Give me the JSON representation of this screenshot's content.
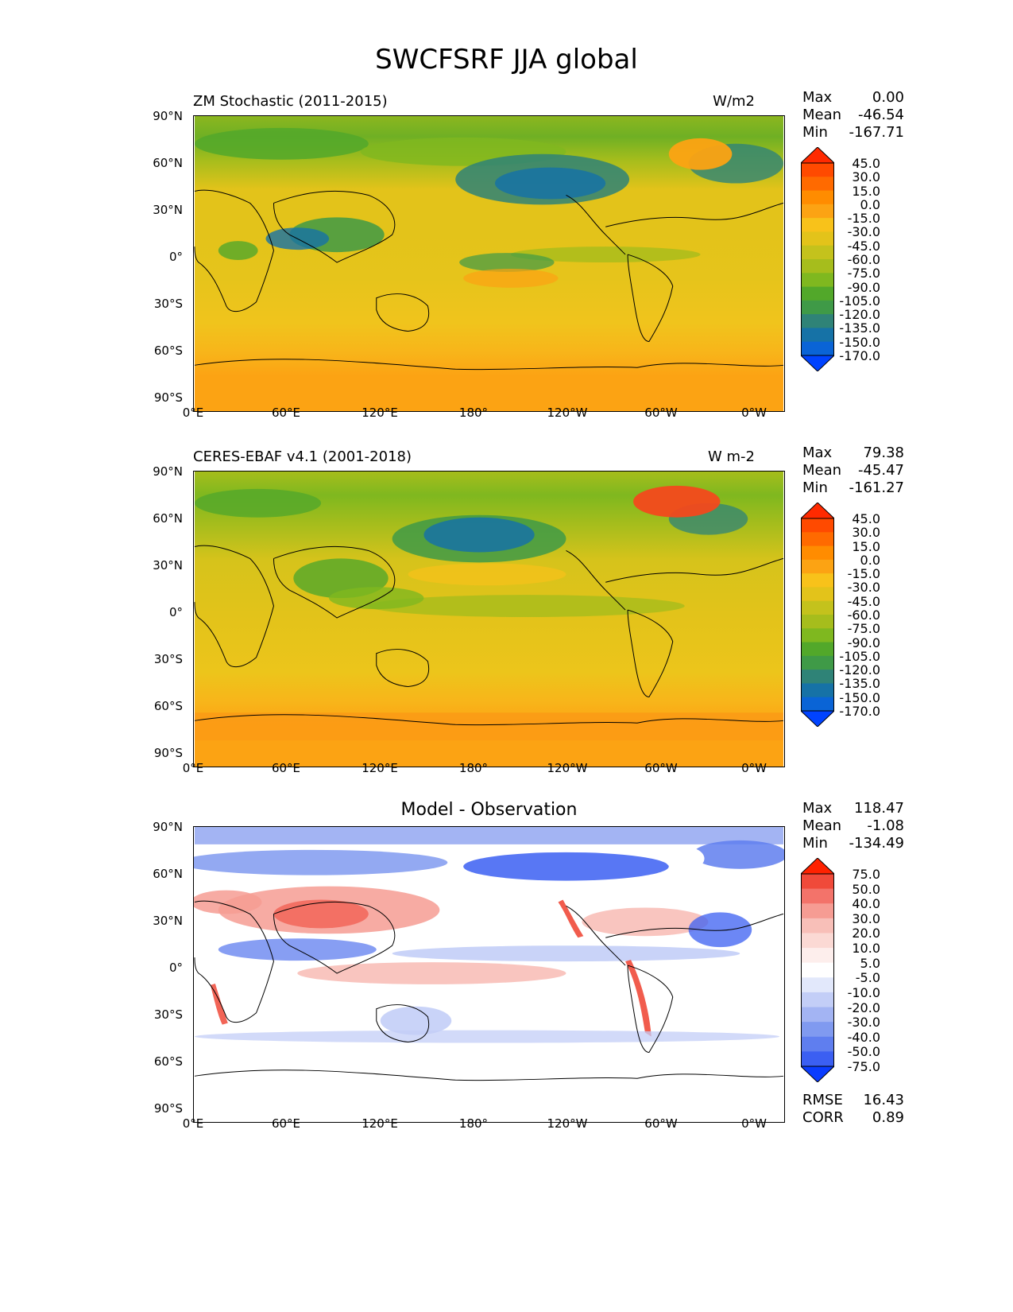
{
  "title": "SWCFSRF JJA global",
  "lat_labels": [
    "90°N",
    "60°N",
    "30°N",
    "0°",
    "30°S",
    "60°S",
    "90°S"
  ],
  "lon_labels": [
    "0°E",
    "60°E",
    "120°E",
    "180°",
    "120°W",
    "60°W",
    "0°W"
  ],
  "panels": [
    {
      "title_left": "ZM Stochastic (2011-2015)",
      "units": "W/m2",
      "stats": {
        "max_label": "Max",
        "max": "0.00",
        "mean_label": "Mean",
        "mean": "-46.54",
        "min_label": "Min",
        "min": "-167.71"
      },
      "colorbar": {
        "labels": [
          "45.0",
          "30.0",
          "15.0",
          "0.0",
          "-15.0",
          "-30.0",
          "-45.0",
          "-60.0",
          "-75.0",
          "-90.0",
          "-105.0",
          "-120.0",
          "-135.0",
          "-150.0",
          "-170.0"
        ],
        "colors": [
          "#ff2a00",
          "#ff4a00",
          "#ff6a00",
          "#ff8c00",
          "#fca313",
          "#f8c21a",
          "#e3c31a",
          "#c4c21c",
          "#a6bd1c",
          "#7fb81f",
          "#52a82a",
          "#3f9a47",
          "#2f8377",
          "#1672a6",
          "#0a64d6",
          "#0043ff"
        ]
      }
    },
    {
      "title_left": "CERES-EBAF v4.1 (2001-2018)",
      "units": "W m-2",
      "stats": {
        "max_label": "Max",
        "max": "79.38",
        "mean_label": "Mean",
        "mean": "-45.47",
        "min_label": "Min",
        "min": "-161.27"
      },
      "colorbar": {
        "labels": [
          "45.0",
          "30.0",
          "15.0",
          "0.0",
          "-15.0",
          "-30.0",
          "-45.0",
          "-60.0",
          "-75.0",
          "-90.0",
          "-105.0",
          "-120.0",
          "-135.0",
          "-150.0",
          "-170.0"
        ],
        "colors": [
          "#ff2a00",
          "#ff4a00",
          "#ff6a00",
          "#ff8c00",
          "#fca313",
          "#f8c21a",
          "#e3c31a",
          "#c4c21c",
          "#a6bd1c",
          "#7fb81f",
          "#52a82a",
          "#3f9a47",
          "#2f8377",
          "#1672a6",
          "#0a64d6",
          "#0043ff"
        ]
      }
    },
    {
      "title_center": "Model - Observation",
      "stats": {
        "max_label": "Max",
        "max": "118.47",
        "mean_label": "Mean",
        "mean": "-1.08",
        "min_label": "Min",
        "min": "-134.49"
      },
      "extra_stats": {
        "rmse_label": "RMSE",
        "rmse": "16.43",
        "corr_label": "CORR",
        "corr": "0.89"
      },
      "colorbar": {
        "labels": [
          "75.0",
          "50.0",
          "40.0",
          "30.0",
          "20.0",
          "10.0",
          "5.0",
          "-5.0",
          "-10.0",
          "-20.0",
          "-30.0",
          "-40.0",
          "-50.0",
          "-75.0"
        ],
        "colors": [
          "#ff2200",
          "#f04a3a",
          "#f3736a",
          "#f69c93",
          "#f8bfb8",
          "#fbd9d4",
          "#fdeeec",
          "#ffffff",
          "#e2e8fb",
          "#c3cef7",
          "#a3b4f3",
          "#809af0",
          "#5f7eef",
          "#3b5ff2",
          "#0a3cff"
        ]
      }
    }
  ]
}
